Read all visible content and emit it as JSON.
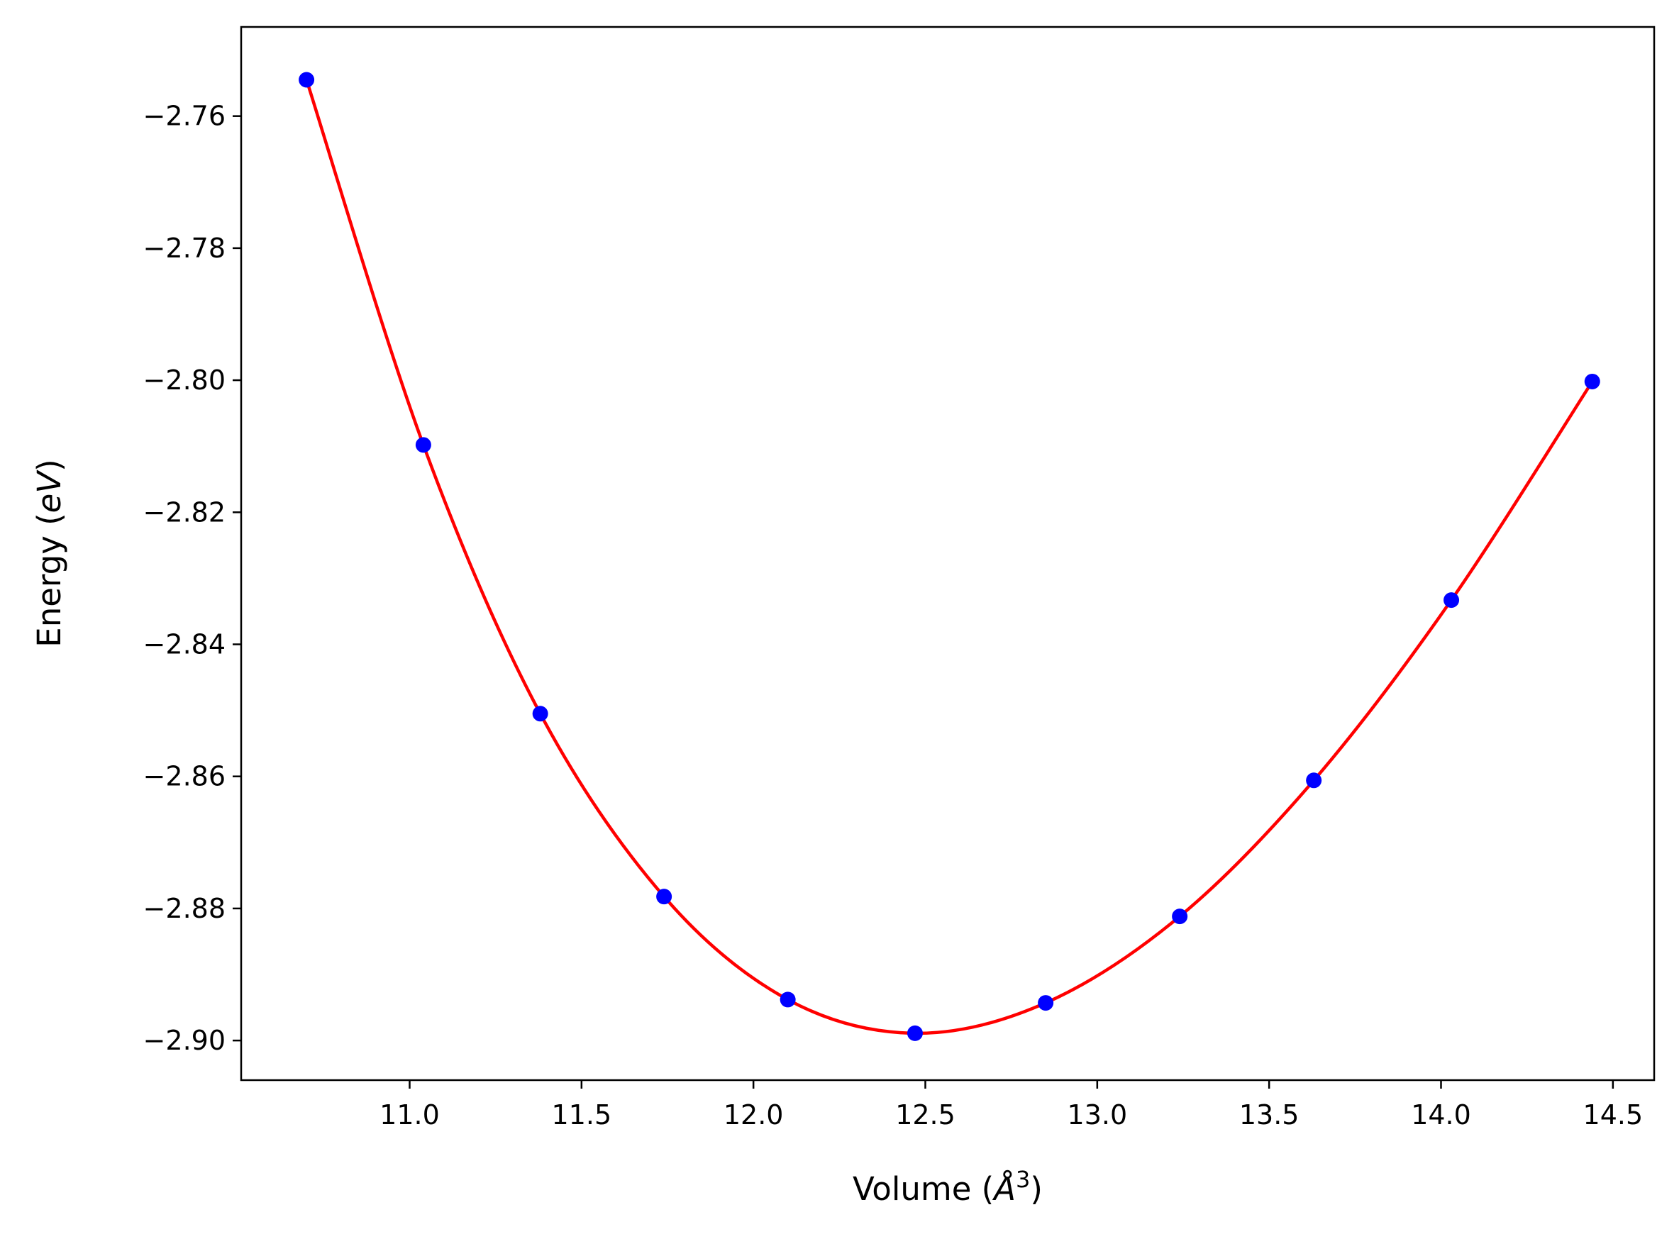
{
  "chart_data": {
    "type": "scatter",
    "xlabel_parts": {
      "prefix": "Volume (",
      "unit": "Å",
      "exponent": "3",
      "suffix": ")"
    },
    "ylabel_parts": {
      "prefix": "Energy (",
      "unit": "eV",
      "suffix": ")"
    },
    "xlim": [
      10.51,
      14.62
    ],
    "ylim": [
      -2.906,
      -2.7465
    ],
    "x_ticks": [
      11.0,
      11.5,
      12.0,
      12.5,
      13.0,
      13.5,
      14.0,
      14.5
    ],
    "x_tick_labels": [
      "11.0",
      "11.5",
      "12.0",
      "12.5",
      "13.0",
      "13.5",
      "14.0",
      "14.5"
    ],
    "y_ticks": [
      -2.9,
      -2.88,
      -2.86,
      -2.84,
      -2.82,
      -2.8,
      -2.78,
      -2.76
    ],
    "y_tick_labels": [
      "−2.90",
      "−2.88",
      "−2.86",
      "−2.84",
      "−2.82",
      "−2.80",
      "−2.78",
      "−2.76"
    ],
    "grid": false,
    "series": [
      {
        "kind": "points",
        "color": "#0000ff",
        "x": [
          10.7,
          11.04,
          11.38,
          11.74,
          12.1,
          12.47,
          12.85,
          13.24,
          13.63,
          14.03,
          14.44
        ],
        "y": [
          -2.7545,
          -2.8098,
          -2.8505,
          -2.8782,
          -2.8938,
          -2.8989,
          -2.8943,
          -2.8812,
          -2.8606,
          -2.8333,
          -2.8002
        ]
      },
      {
        "kind": "fit-line",
        "color": "#ff0000"
      }
    ]
  }
}
